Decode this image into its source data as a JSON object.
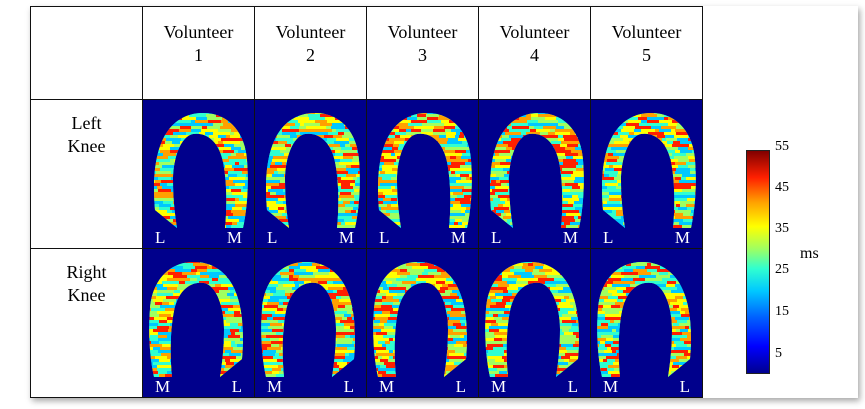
{
  "columns": [
    {
      "line1": "Volunteer",
      "line2": "1"
    },
    {
      "line1": "Volunteer",
      "line2": "2"
    },
    {
      "line1": "Volunteer",
      "line2": "3"
    },
    {
      "line1": "Volunteer",
      "line2": "4"
    },
    {
      "line1": "Volunteer",
      "line2": "5"
    }
  ],
  "rows": [
    {
      "line1": "Left",
      "line2": "Knee",
      "left_side": "L",
      "right_side": "M"
    },
    {
      "line1": "Right",
      "line2": "Knee",
      "left_side": "M",
      "right_side": "L"
    }
  ],
  "colorbar": {
    "ticks": [
      "55",
      "45",
      "35",
      "25",
      "15",
      "5"
    ],
    "unit": "ms",
    "min": 0,
    "max": 57,
    "colors": [
      "#000090",
      "#0000ff",
      "#0060ff",
      "#00c8ff",
      "#30ffd0",
      "#a0ff60",
      "#ffff00",
      "#ffa000",
      "#ff2000",
      "#800000"
    ]
  },
  "image_background_color": "#00008c"
}
